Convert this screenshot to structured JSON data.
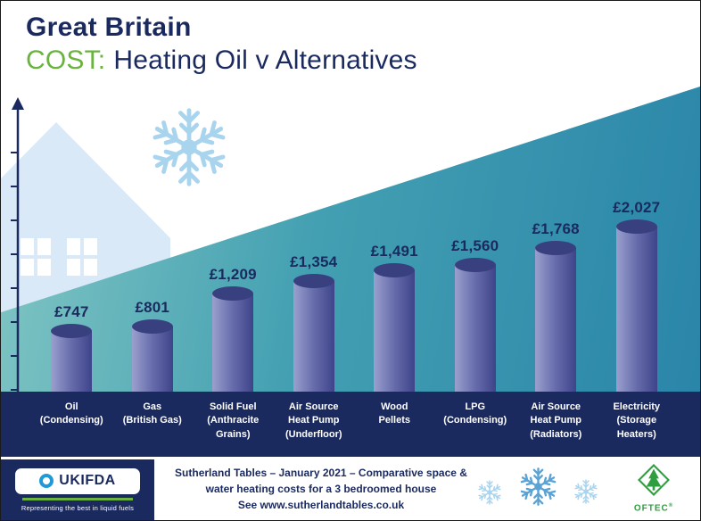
{
  "header": {
    "region": "Great Britain",
    "cost_word": "COST:",
    "subtitle": "Heating Oil v Alternatives"
  },
  "chart_data": {
    "type": "bar",
    "title": "Great Britain COST: Heating Oil v Alternatives",
    "categories": [
      "Oil\n(Condensing)",
      "Gas\n(British Gas)",
      "Solid Fuel\n(Anthracite\nGrains)",
      "Air Source\nHeat Pump\n(Underfloor)",
      "Wood\nPellets",
      "LPG\n(Condensing)",
      "Air Source\nHeat Pump\n(Radiators)",
      "Electricity\n(Storage\nHeaters)"
    ],
    "values": [
      747,
      801,
      1209,
      1354,
      1491,
      1560,
      1768,
      2027
    ],
    "value_labels": [
      "£747",
      "£801",
      "£1,209",
      "£1,354",
      "£1,491",
      "£1,560",
      "£1,768",
      "£2,027"
    ],
    "currency": "GBP",
    "ylim": [
      0,
      2100
    ],
    "grid": false,
    "legend": "none"
  },
  "footer": {
    "ukifda_name": "UKIFDA",
    "ukifda_tagline": "Representing the best in liquid fuels",
    "caption_line1": "Sutherland Tables – January 2021 – Comparative space &",
    "caption_line2": "water heating costs for a 3 bedroomed house",
    "caption_see": "See ",
    "caption_url": "www.sutherlandtables.co.uk",
    "oftec_name": "OFTEC",
    "oftec_reg": "®"
  },
  "colors": {
    "navy": "#1b2a5e",
    "green": "#6ab33e",
    "teal_dark": "#2a85a9",
    "teal_mid": "#43a0b2",
    "teal_light": "#83c7c4",
    "bar_light": "#9aa0cd",
    "bar_mid": "#666cab",
    "bar_dark": "#3e4489",
    "bar_top": "#394080",
    "snowflake_light": "#a9d4ee",
    "snowflake_mid": "#59a3d6",
    "house_blue": "#d9e9f7",
    "oftec_green": "#2e9e3f"
  }
}
